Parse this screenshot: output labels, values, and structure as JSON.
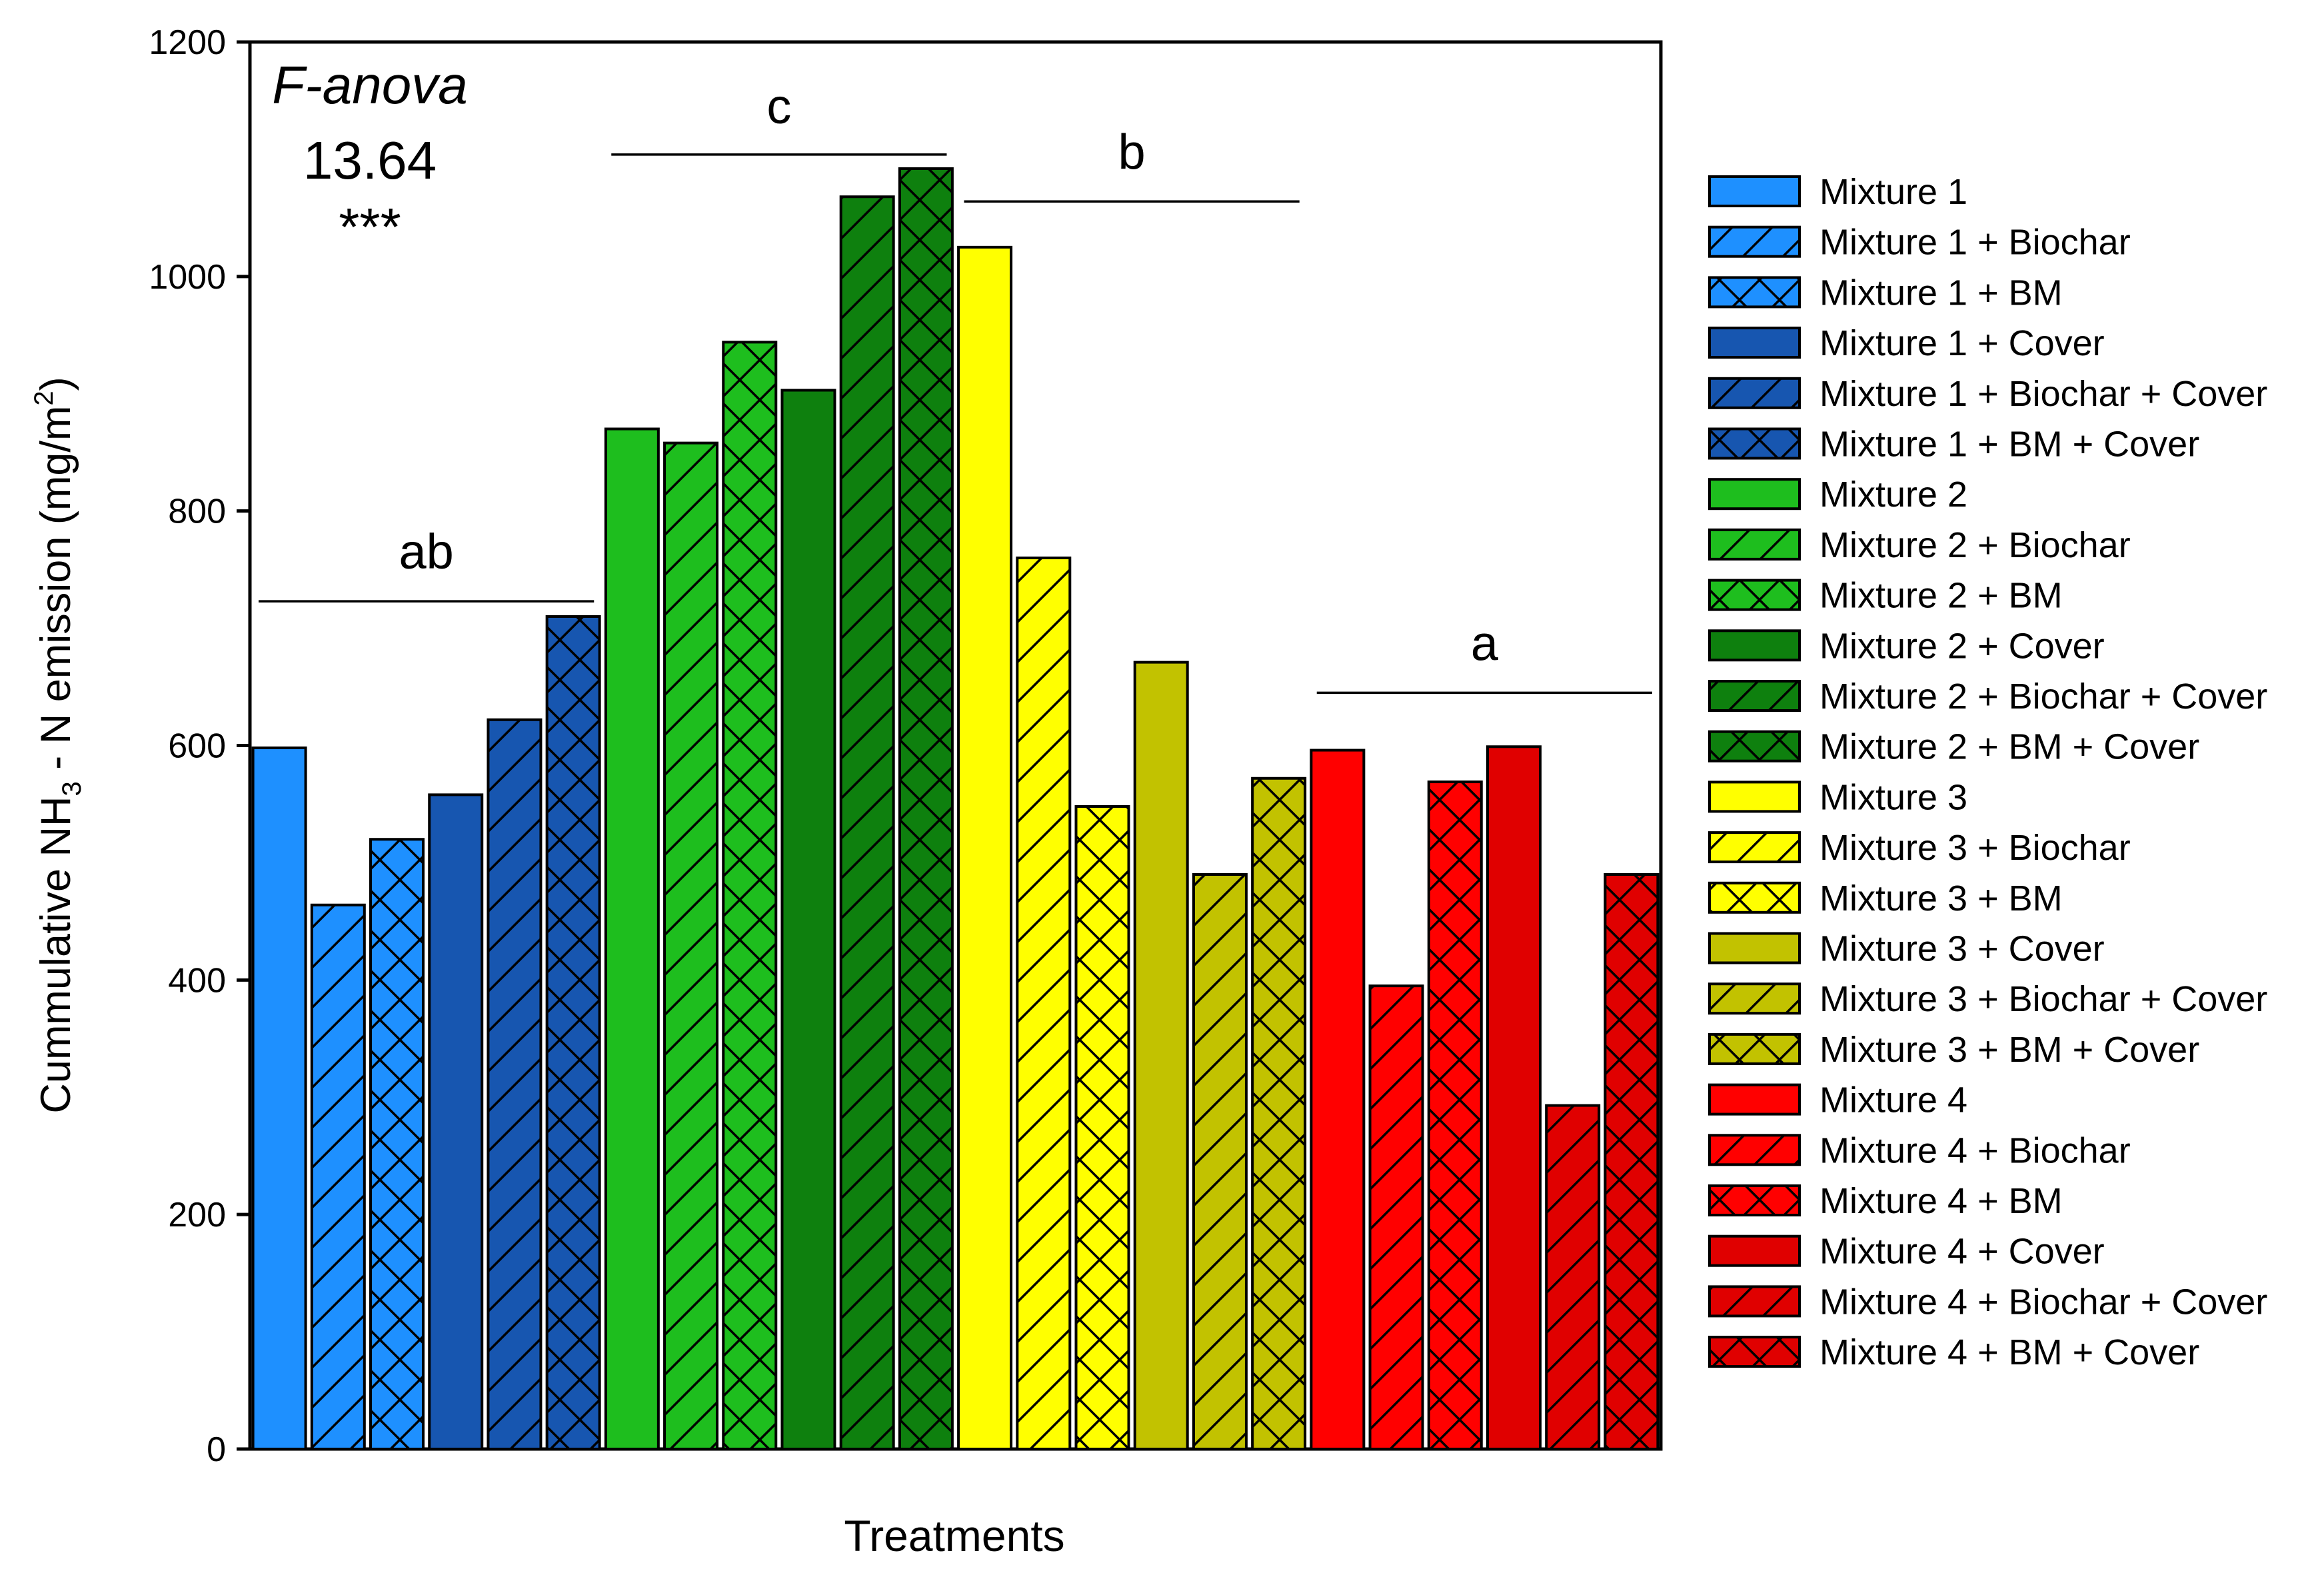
{
  "chart_data": {
    "type": "bar",
    "title": "",
    "xlabel": "Treatments",
    "ylabel_parts": [
      "Cummulative NH",
      "3",
      " - N emission (mg/m",
      "2",
      ")"
    ],
    "ylim": [
      0,
      1200
    ],
    "yticks": [
      0,
      200,
      400,
      600,
      800,
      1000,
      1200
    ],
    "grid": false,
    "legend_position": "right",
    "annotation": {
      "test": "F-anova",
      "value": "13.64",
      "significance": "***"
    },
    "groups": [
      {
        "label": "ab",
        "from": 0,
        "to": 5,
        "line_value": 723,
        "label_value": 765
      },
      {
        "label": "c",
        "from": 6,
        "to": 11,
        "line_value": 1104,
        "label_value": 1145
      },
      {
        "label": "b",
        "from": 12,
        "to": 17,
        "line_value": 1064,
        "label_value": 1106
      },
      {
        "label": "a",
        "from": 18,
        "to": 23,
        "line_value": 645,
        "label_value": 687
      }
    ],
    "series": [
      {
        "name": "Mixture 1",
        "value": 598,
        "color": "#1e90ff",
        "pattern": "solid"
      },
      {
        "name": "Mixture 1 + Biochar",
        "value": 464,
        "color": "#1e90ff",
        "pattern": "hatch"
      },
      {
        "name": "Mixture 1 + BM",
        "value": 520,
        "color": "#1e90ff",
        "pattern": "cross"
      },
      {
        "name": "Mixture 1 + Cover",
        "value": 558,
        "color": "#1756b0",
        "pattern": "solid"
      },
      {
        "name": "Mixture 1 + Biochar + Cover",
        "value": 622,
        "color": "#1756b0",
        "pattern": "hatch"
      },
      {
        "name": "Mixture 1 + BM + Cover",
        "value": 710,
        "color": "#1756b0",
        "pattern": "cross"
      },
      {
        "name": "Mixture 2",
        "value": 870,
        "color": "#1ebe1e",
        "pattern": "solid"
      },
      {
        "name": "Mixture 2 + Biochar",
        "value": 858,
        "color": "#1ebe1e",
        "pattern": "hatch"
      },
      {
        "name": "Mixture 2 + BM",
        "value": 944,
        "color": "#1ebe1e",
        "pattern": "cross"
      },
      {
        "name": "Mixture 2 + Cover",
        "value": 903,
        "color": "#0e800e",
        "pattern": "solid"
      },
      {
        "name": "Mixture 2 + Biochar + Cover",
        "value": 1068,
        "color": "#0e800e",
        "pattern": "hatch"
      },
      {
        "name": "Mixture 2 + BM + Cover",
        "value": 1092,
        "color": "#0e800e",
        "pattern": "cross"
      },
      {
        "name": "Mixture 3",
        "value": 1025,
        "color": "#ffff00",
        "pattern": "solid"
      },
      {
        "name": "Mixture 3 + Biochar",
        "value": 760,
        "color": "#ffff00",
        "pattern": "hatch"
      },
      {
        "name": "Mixture 3 + BM",
        "value": 548,
        "color": "#ffff00",
        "pattern": "cross"
      },
      {
        "name": "Mixture 3 + Cover",
        "value": 671,
        "color": "#c2c200",
        "pattern": "solid"
      },
      {
        "name": "Mixture 3 + Biochar + Cover",
        "value": 490,
        "color": "#c2c200",
        "pattern": "hatch"
      },
      {
        "name": "Mixture 3 + BM + Cover",
        "value": 572,
        "color": "#c2c200",
        "pattern": "cross"
      },
      {
        "name": "Mixture 4",
        "value": 596,
        "color": "#ff0000",
        "pattern": "solid"
      },
      {
        "name": "Mixture 4 + Biochar",
        "value": 395,
        "color": "#ff0000",
        "pattern": "hatch"
      },
      {
        "name": "Mixture 4 + BM",
        "value": 569,
        "color": "#ff0000",
        "pattern": "cross"
      },
      {
        "name": "Mixture 4 + Cover",
        "value": 599,
        "color": "#e00000",
        "pattern": "solid"
      },
      {
        "name": "Mixture 4 + Biochar + Cover",
        "value": 293,
        "color": "#e00000",
        "pattern": "hatch"
      },
      {
        "name": "Mixture 4 + BM + Cover",
        "value": 490,
        "color": "#e00000",
        "pattern": "cross"
      }
    ]
  }
}
